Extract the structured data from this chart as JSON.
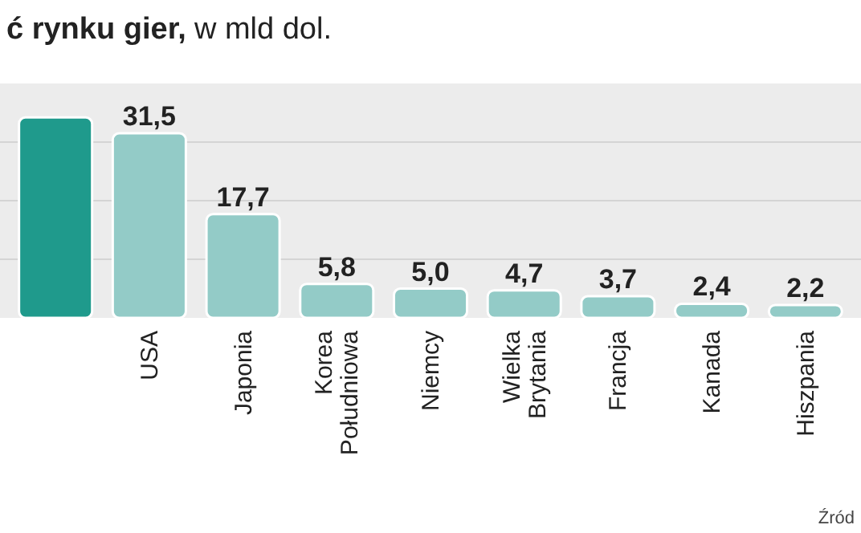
{
  "chart_data": {
    "type": "bar",
    "title": "ć rynku gier,",
    "subtitle": "w mld dol.",
    "categories": [
      null,
      "USA",
      "Japonia",
      "Korea Południowa",
      "Niemcy",
      "Wielka Brytania",
      "Francja",
      "Kanada",
      "Hiszpania"
    ],
    "values": [
      34.2,
      31.5,
      17.7,
      5.8,
      5.0,
      4.7,
      3.7,
      2.4,
      2.2
    ],
    "value_labels": [
      null,
      "31,5",
      "17,7",
      "5,8",
      "5,0",
      "4,7",
      "3,7",
      "2,4",
      "2,2"
    ],
    "colors": [
      "#1f9a8c",
      "#93cbc7",
      "#93cbc7",
      "#93cbc7",
      "#93cbc7",
      "#93cbc7",
      "#93cbc7",
      "#93cbc7",
      "#93cbc7"
    ],
    "ylim": [
      0,
      40
    ],
    "yticks": [
      {
        "value": 10,
        "label": null
      },
      {
        "value": 20,
        "label": null
      },
      {
        "value": 30,
        "label": null
      }
    ],
    "grid": "y",
    "tick_labels": "x",
    "annotations": [
      "Źród"
    ]
  }
}
